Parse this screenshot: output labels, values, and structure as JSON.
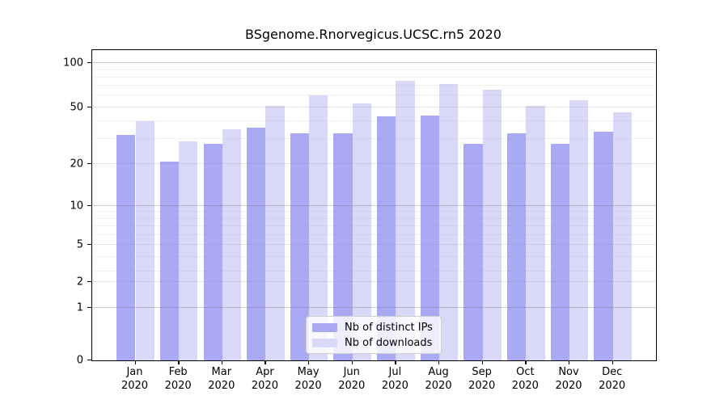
{
  "title": "BSgenome.Rnorvegicus.UCSC.rn5 2020",
  "chart_data": {
    "type": "bar",
    "title": "BSgenome.Rnorvegicus.UCSC.rn5 2020",
    "categories": [
      "Jan 2020",
      "Feb 2020",
      "Mar 2020",
      "Apr 2020",
      "May 2020",
      "Jun 2020",
      "Jul 2020",
      "Aug 2020",
      "Sep 2020",
      "Oct 2020",
      "Nov 2020",
      "Dec 2020"
    ],
    "months": [
      "Jan",
      "Feb",
      "Mar",
      "Apr",
      "May",
      "Jun",
      "Jul",
      "Aug",
      "Sep",
      "Oct",
      "Nov",
      "Dec"
    ],
    "year_label": "2020",
    "series": [
      {
        "name": "Nb of distinct IPs",
        "color": "#a9a9f4",
        "values": [
          32,
          21,
          28,
          36,
          33,
          33,
          43,
          44,
          28,
          33,
          28,
          34
        ]
      },
      {
        "name": "Nb of downloads",
        "color": "#d9d9f7",
        "values": [
          40,
          29,
          35,
          51,
          60,
          53,
          76,
          72,
          66,
          51,
          56,
          46
        ]
      }
    ],
    "yscale": "log1p",
    "yticks": [
      0,
      1,
      2,
      5,
      10,
      20,
      50,
      100
    ],
    "ylim": [
      0,
      120
    ],
    "grid": true,
    "legend_position": "lower center"
  }
}
